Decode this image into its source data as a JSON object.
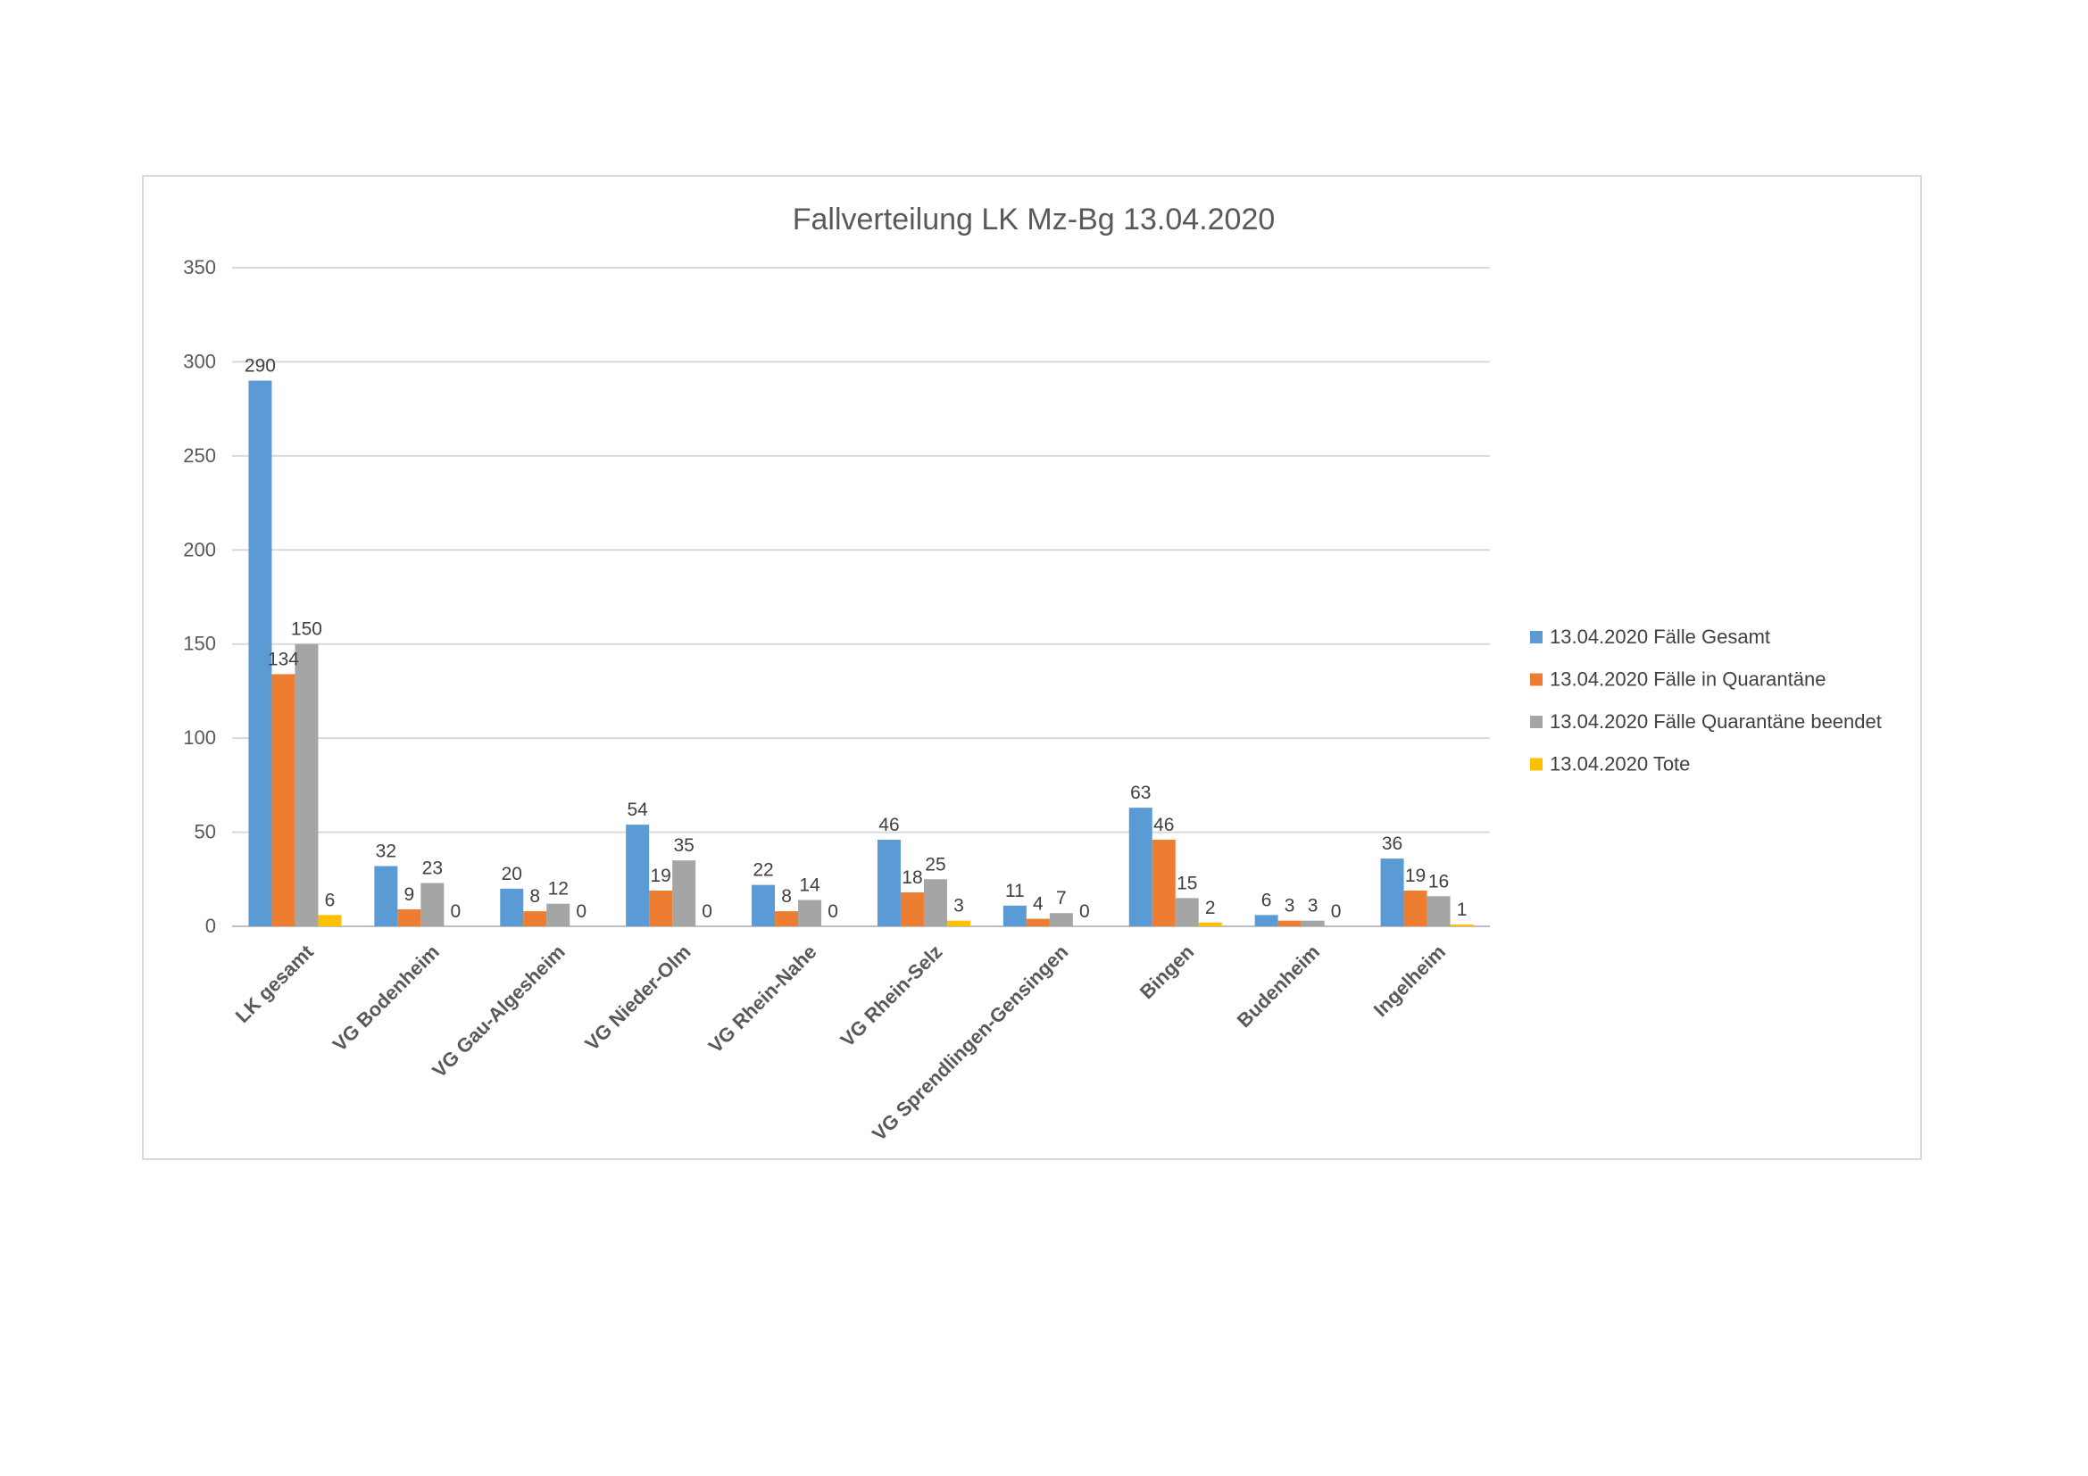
{
  "chart_data": {
    "type": "bar",
    "title": "Fallverteilung LK Mz-Bg 13.04.2020",
    "xlabel": "",
    "ylabel": "",
    "ylim": [
      0,
      350
    ],
    "yticks": [
      0,
      50,
      100,
      150,
      200,
      250,
      300,
      350
    ],
    "grid": true,
    "legend_position": "right",
    "categories": [
      "LK gesamt",
      "VG Bodenheim",
      "VG Gau-Algesheim",
      "VG Nieder-Olm",
      "VG Rhein-Nahe",
      "VG Rhein-Selz",
      "VG Sprendlingen-Gensingen",
      "Bingen",
      "Budenheim",
      "Ingelheim"
    ],
    "series": [
      {
        "name": "13.04.2020 Fälle Gesamt",
        "color": "#5b9bd5",
        "values": [
          290,
          32,
          20,
          54,
          22,
          46,
          11,
          63,
          6,
          36
        ]
      },
      {
        "name": "13.04.2020 Fälle in Quarantäne",
        "color": "#ed7d31",
        "values": [
          134,
          9,
          8,
          19,
          8,
          18,
          4,
          46,
          3,
          19
        ]
      },
      {
        "name": "13.04.2020 Fälle Quarantäne beendet",
        "color": "#a5a5a5",
        "values": [
          150,
          23,
          12,
          35,
          14,
          25,
          7,
          15,
          3,
          16
        ]
      },
      {
        "name": "13.04.2020 Tote",
        "color": "#ffc000",
        "values": [
          6,
          0,
          0,
          0,
          0,
          3,
          0,
          2,
          0,
          1
        ]
      }
    ]
  }
}
